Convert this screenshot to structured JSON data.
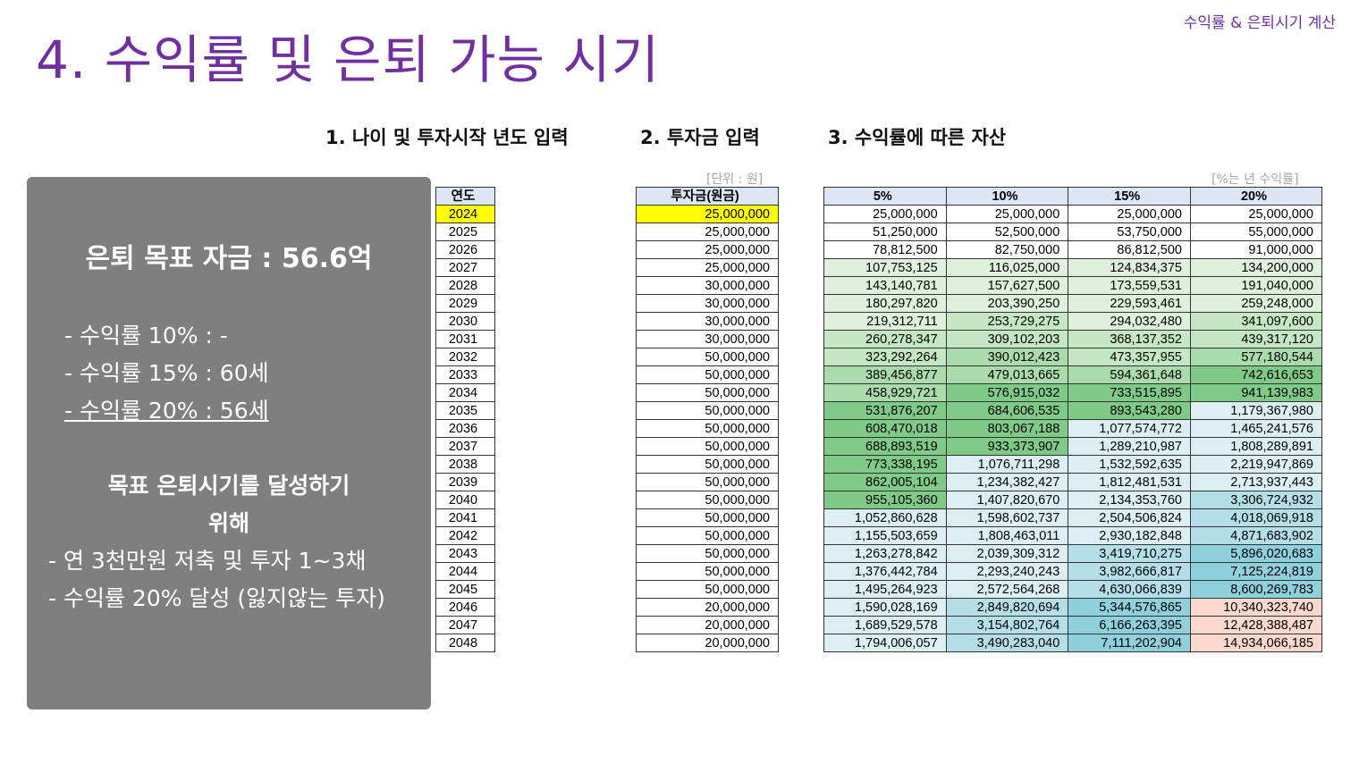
{
  "corner_label": "수익률 & 은퇴시기 계산",
  "title": "4. 수익률 및 은퇴 가능 시기",
  "sections": [
    "1. 나이 및 투자시작 년도 입력",
    "2. 투자금 입력",
    "3. 수익률에 따른 자산"
  ],
  "unit_left": "[단위 : 원]",
  "unit_right": "[%는 년 수익률]",
  "panel": {
    "goal": "은퇴 목표 자금 : 56.6억",
    "rate10": "- 수익률 10% : -",
    "rate15": "- 수익률 15% : 60세",
    "rate20": "- 수익률 20% : 56세",
    "heading1": "목표 은퇴시기를 달성하기",
    "heading2": "위해",
    "bullet1": "- 연 3천만원 저축 및 투자 1~3채",
    "bullet2": "- 수익률 20% 달성 (잃지않는 투자)"
  },
  "year_header": "연도",
  "invest_header": "투자금(원금)",
  "returns_headers": [
    "5%",
    "10%",
    "15%",
    "20%"
  ],
  "rows": [
    [
      "2024",
      "25,000,000",
      "25,000,000",
      "25,000,000",
      "25,000,000",
      "25,000,000"
    ],
    [
      "2025",
      "25,000,000",
      "51,250,000",
      "52,500,000",
      "53,750,000",
      "55,000,000"
    ],
    [
      "2026",
      "25,000,000",
      "78,812,500",
      "82,750,000",
      "86,812,500",
      "91,000,000"
    ],
    [
      "2027",
      "25,000,000",
      "107,753,125",
      "116,025,000",
      "124,834,375",
      "134,200,000"
    ],
    [
      "2028",
      "30,000,000",
      "143,140,781",
      "157,627,500",
      "173,559,531",
      "191,040,000"
    ],
    [
      "2029",
      "30,000,000",
      "180,297,820",
      "203,390,250",
      "229,593,461",
      "259,248,000"
    ],
    [
      "2030",
      "30,000,000",
      "219,312,711",
      "253,729,275",
      "294,032,480",
      "341,097,600"
    ],
    [
      "2031",
      "30,000,000",
      "260,278,347",
      "309,102,203",
      "368,137,352",
      "439,317,120"
    ],
    [
      "2032",
      "50,000,000",
      "323,292,264",
      "390,012,423",
      "473,357,955",
      "577,180,544"
    ],
    [
      "2033",
      "50,000,000",
      "389,456,877",
      "479,013,665",
      "594,361,648",
      "742,616,653"
    ],
    [
      "2034",
      "50,000,000",
      "458,929,721",
      "576,915,032",
      "733,515,895",
      "941,139,983"
    ],
    [
      "2035",
      "50,000,000",
      "531,876,207",
      "684,606,535",
      "893,543,280",
      "1,179,367,980"
    ],
    [
      "2036",
      "50,000,000",
      "608,470,018",
      "803,067,188",
      "1,077,574,772",
      "1,465,241,576"
    ],
    [
      "2037",
      "50,000,000",
      "688,893,519",
      "933,373,907",
      "1,289,210,987",
      "1,808,289,891"
    ],
    [
      "2038",
      "50,000,000",
      "773,338,195",
      "1,076,711,298",
      "1,532,592,635",
      "2,219,947,869"
    ],
    [
      "2039",
      "50,000,000",
      "862,005,104",
      "1,234,382,427",
      "1,812,481,531",
      "2,713,937,443"
    ],
    [
      "2040",
      "50,000,000",
      "955,105,360",
      "1,407,820,670",
      "2,134,353,760",
      "3,306,724,932"
    ],
    [
      "2041",
      "50,000,000",
      "1,052,860,628",
      "1,598,602,737",
      "2,504,506,824",
      "4,018,069,918"
    ],
    [
      "2042",
      "50,000,000",
      "1,155,503,659",
      "1,808,463,011",
      "2,930,182,848",
      "4,871,683,902"
    ],
    [
      "2043",
      "50,000,000",
      "1,263,278,842",
      "2,039,309,312",
      "3,419,710,275",
      "5,896,020,683"
    ],
    [
      "2044",
      "50,000,000",
      "1,376,442,784",
      "2,293,240,243",
      "3,982,666,817",
      "7,125,224,819"
    ],
    [
      "2045",
      "50,000,000",
      "1,495,264,923",
      "2,572,564,268",
      "4,630,066,839",
      "8,600,269,783"
    ],
    [
      "2046",
      "20,000,000",
      "1,590,028,169",
      "2,849,820,694",
      "5,344,576,865",
      "10,340,323,740"
    ],
    [
      "2047",
      "20,000,000",
      "1,689,529,578",
      "3,154,802,764",
      "6,166,263,395",
      "12,428,388,487"
    ],
    [
      "2048",
      "20,000,000",
      "1,794,006,057",
      "3,490,283,040",
      "7,111,202,904",
      "14,934,066,185"
    ]
  ],
  "cell_classes": [
    [
      "",
      "",
      "",
      ""
    ],
    [
      "",
      "",
      "",
      ""
    ],
    [
      "",
      "",
      "",
      ""
    ],
    [
      "g1",
      "g1",
      "g1",
      "g1"
    ],
    [
      "g1",
      "g1",
      "g1",
      "g1"
    ],
    [
      "g1",
      "g1",
      "g1",
      "g1"
    ],
    [
      "g1",
      "g2",
      "g1",
      "g2"
    ],
    [
      "g2",
      "g2",
      "g2",
      "g2"
    ],
    [
      "g2",
      "g3",
      "g2",
      "g3"
    ],
    [
      "g3",
      "g3",
      "g3",
      "g4"
    ],
    [
      "g3",
      "g4",
      "g4",
      "g4"
    ],
    [
      "g4",
      "g4",
      "g4",
      "b1"
    ],
    [
      "g4",
      "g4",
      "b1",
      "b1"
    ],
    [
      "g4",
      "g4",
      "b1",
      "b1"
    ],
    [
      "g4",
      "b1",
      "b1",
      "b1"
    ],
    [
      "g4",
      "b1",
      "b1",
      "b1"
    ],
    [
      "g4",
      "b1",
      "b1",
      "b2"
    ],
    [
      "b1",
      "b1",
      "b1",
      "b2"
    ],
    [
      "b1",
      "b1",
      "b1",
      "b2"
    ],
    [
      "b1",
      "b1",
      "b2",
      "b3"
    ],
    [
      "b1",
      "b1",
      "b2",
      "b3"
    ],
    [
      "b1",
      "b1",
      "b2",
      "b3"
    ],
    [
      "b1",
      "b2",
      "b3",
      "pk"
    ],
    [
      "b1",
      "b2",
      "b3",
      "pk"
    ],
    [
      "b1",
      "b2",
      "b3",
      "pk"
    ]
  ]
}
